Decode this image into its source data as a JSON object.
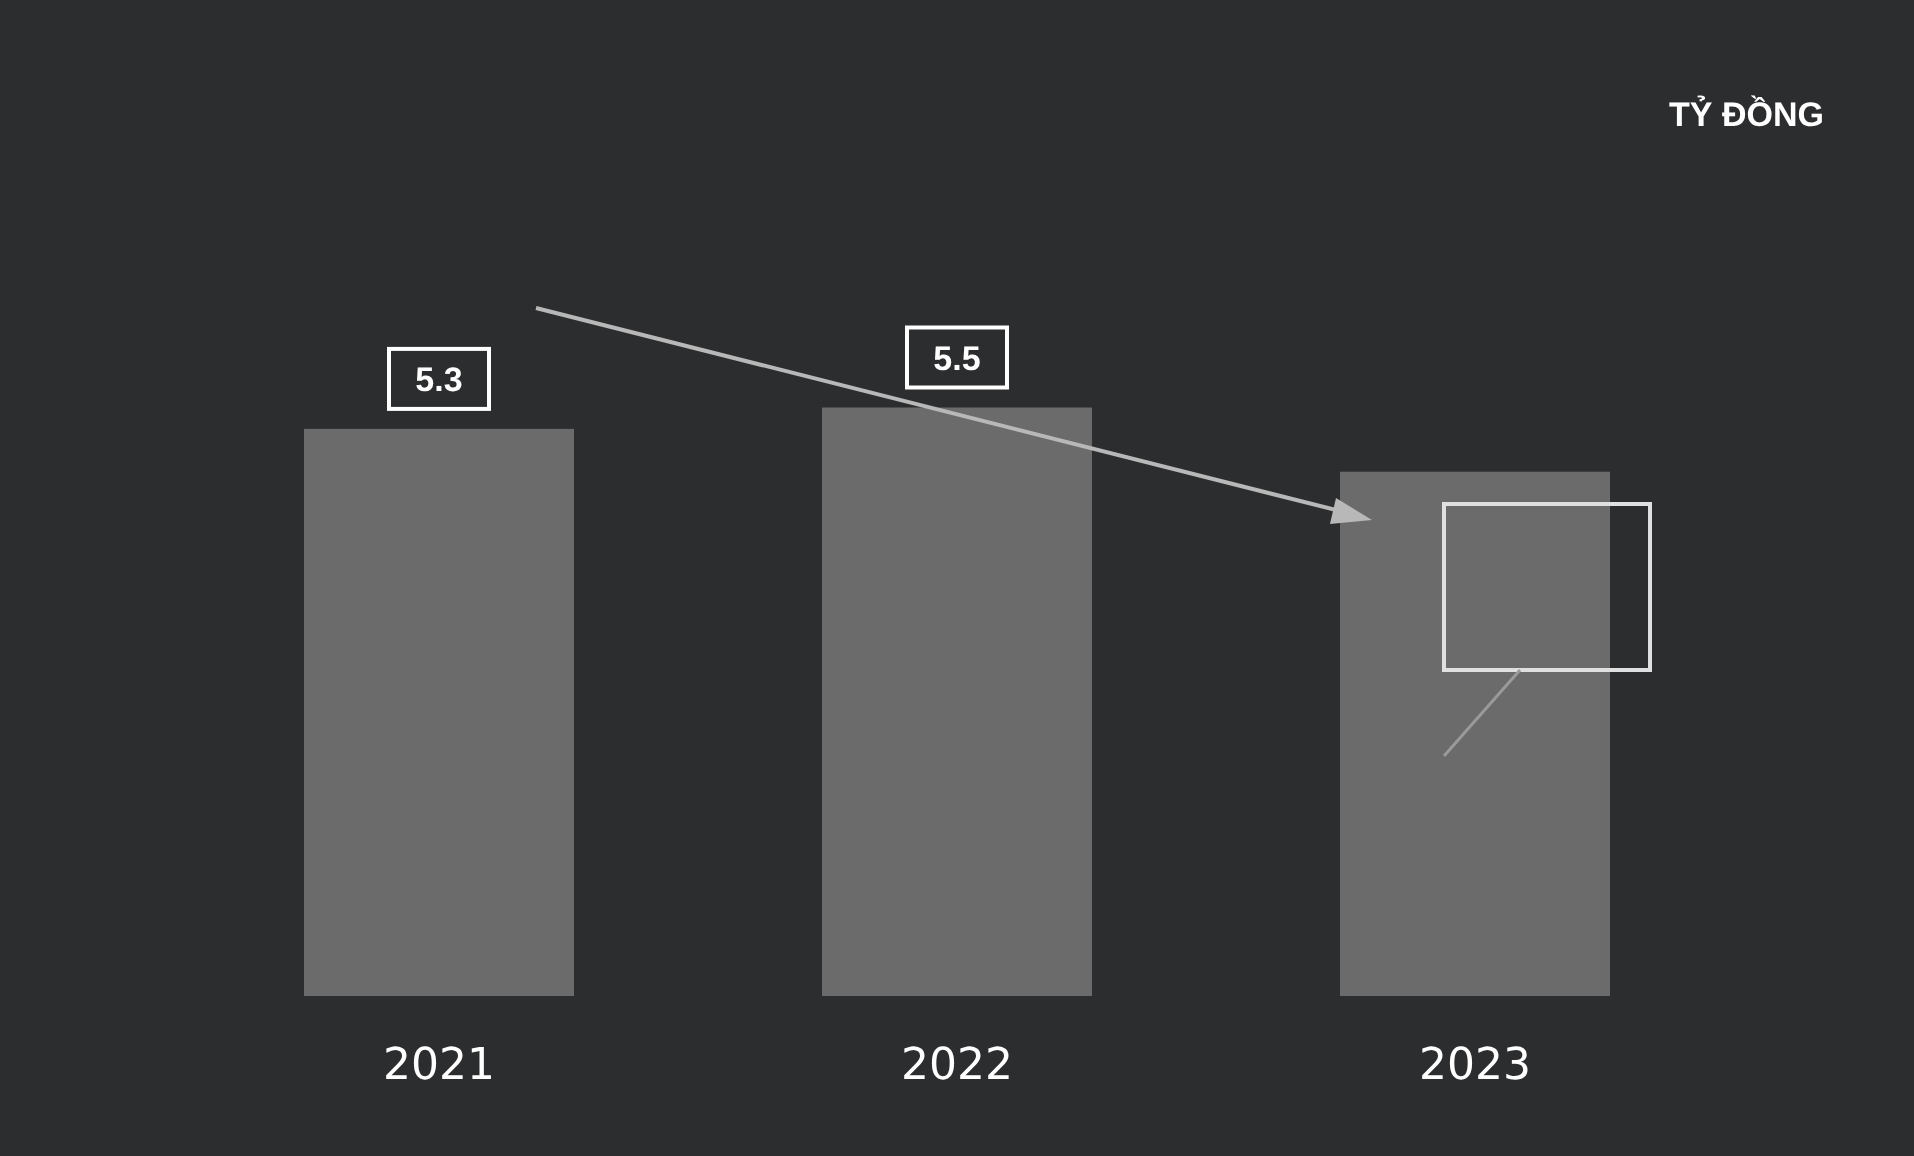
{
  "chart_data": {
    "type": "bar",
    "categories": [
      "2021",
      "2022",
      "2023"
    ],
    "values": [
      5.3,
      5.5,
      4.9
    ],
    "value_labels": [
      "5.3",
      "5.5",
      null
    ],
    "color": "#6b6b6b",
    "tick_labels": "x",
    "annotations": [
      "TỶ ĐỒNG"
    ]
  }
}
